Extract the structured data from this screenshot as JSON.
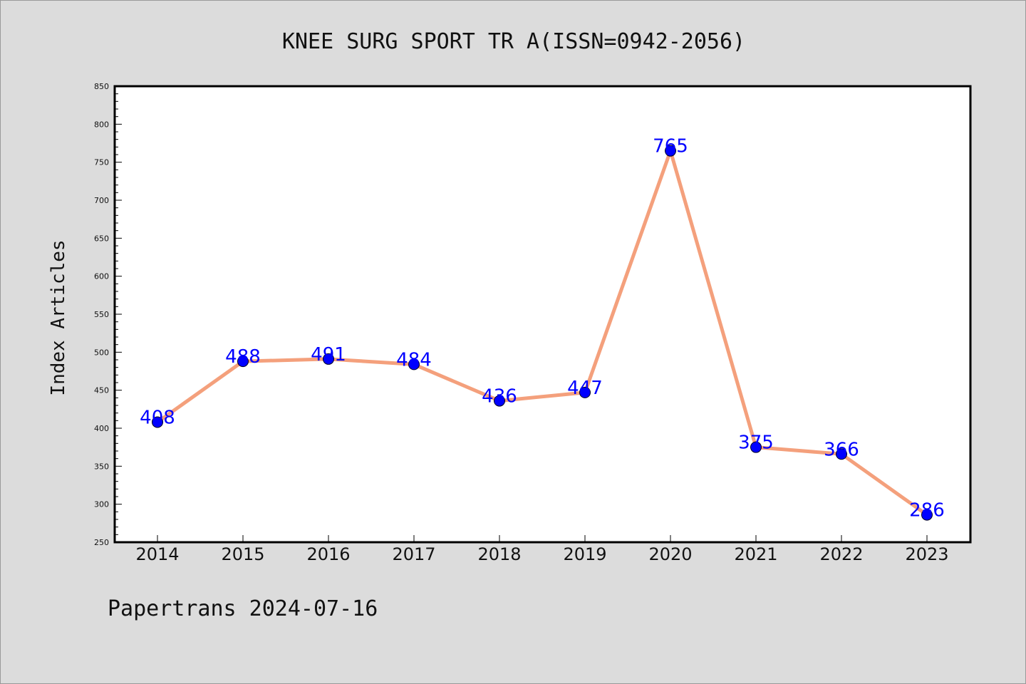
{
  "chart_data": {
    "type": "line",
    "title": "KNEE SURG SPORT TR A(ISSN=0942-2056)",
    "xlabel": "",
    "ylabel": "Index Articles",
    "categories": [
      "2014",
      "2015",
      "2016",
      "2017",
      "2018",
      "2019",
      "2020",
      "2021",
      "2022",
      "2023"
    ],
    "values": [
      408,
      488,
      491,
      484,
      436,
      447,
      765,
      375,
      366,
      286
    ],
    "data_labels": [
      "408",
      "488",
      "491",
      "484",
      "436",
      "447",
      "765",
      "375",
      "366",
      "286"
    ],
    "ylim": [
      250,
      850
    ],
    "yticks": [
      "250",
      "300",
      "350",
      "400",
      "450",
      "500",
      "550",
      "600",
      "650",
      "700",
      "750",
      "800",
      "850"
    ],
    "grid": false,
    "colors": {
      "line": "#f4a07c",
      "marker": "#0000ff",
      "data_label": "#0000ff"
    }
  },
  "footer": "Papertrans 2024-07-16"
}
